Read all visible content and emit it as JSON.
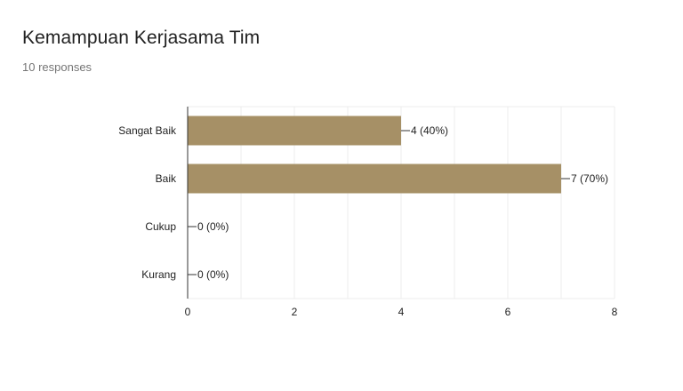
{
  "header": {
    "title": "Kemampuan Kerjasama Tim",
    "responses": "10 responses"
  },
  "colors": {
    "bar": "#a69066",
    "grid": "#ececec",
    "axis": "#333333",
    "text": "#222222"
  },
  "chart_data": {
    "type": "bar",
    "orientation": "horizontal",
    "title": "Kemampuan Kerjasama Tim",
    "categories": [
      "Sangat Baik",
      "Baik",
      "Cukup",
      "Kurang"
    ],
    "values": [
      4,
      7,
      0,
      0
    ],
    "data_labels": [
      "4 (40%)",
      "7 (70%)",
      "0 (0%)",
      "0 (0%)"
    ],
    "xlim": [
      0,
      8
    ],
    "xticks": [
      0,
      2,
      4,
      6,
      8
    ],
    "grid": true,
    "legend": "none",
    "xlabel": "",
    "ylabel": ""
  }
}
